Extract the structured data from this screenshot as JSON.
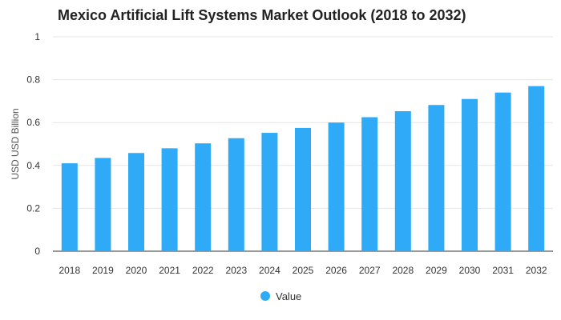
{
  "chart_data": {
    "type": "bar",
    "title": "Mexico Artificial Lift Systems Market Outlook (2018 to 2032)",
    "xlabel": "",
    "ylabel": "USD USD Billion",
    "categories": [
      "2018",
      "2019",
      "2020",
      "2021",
      "2022",
      "2023",
      "2024",
      "2025",
      "2026",
      "2027",
      "2028",
      "2029",
      "2030",
      "2031",
      "2032"
    ],
    "series": [
      {
        "name": "Value",
        "values": [
          0.41,
          0.435,
          0.458,
          0.48,
          0.503,
          0.527,
          0.552,
          0.575,
          0.6,
          0.625,
          0.653,
          0.682,
          0.71,
          0.74,
          0.77
        ]
      }
    ],
    "ylim": [
      0,
      1
    ],
    "yticks": [
      "0",
      "0.2",
      "0.4",
      "0.6",
      "0.8",
      "1"
    ],
    "grid": true,
    "legend_position": "bottom",
    "colors": {
      "bar": "#2eaaf7",
      "grid": "#e6e6e6",
      "axis": "#333333"
    }
  }
}
